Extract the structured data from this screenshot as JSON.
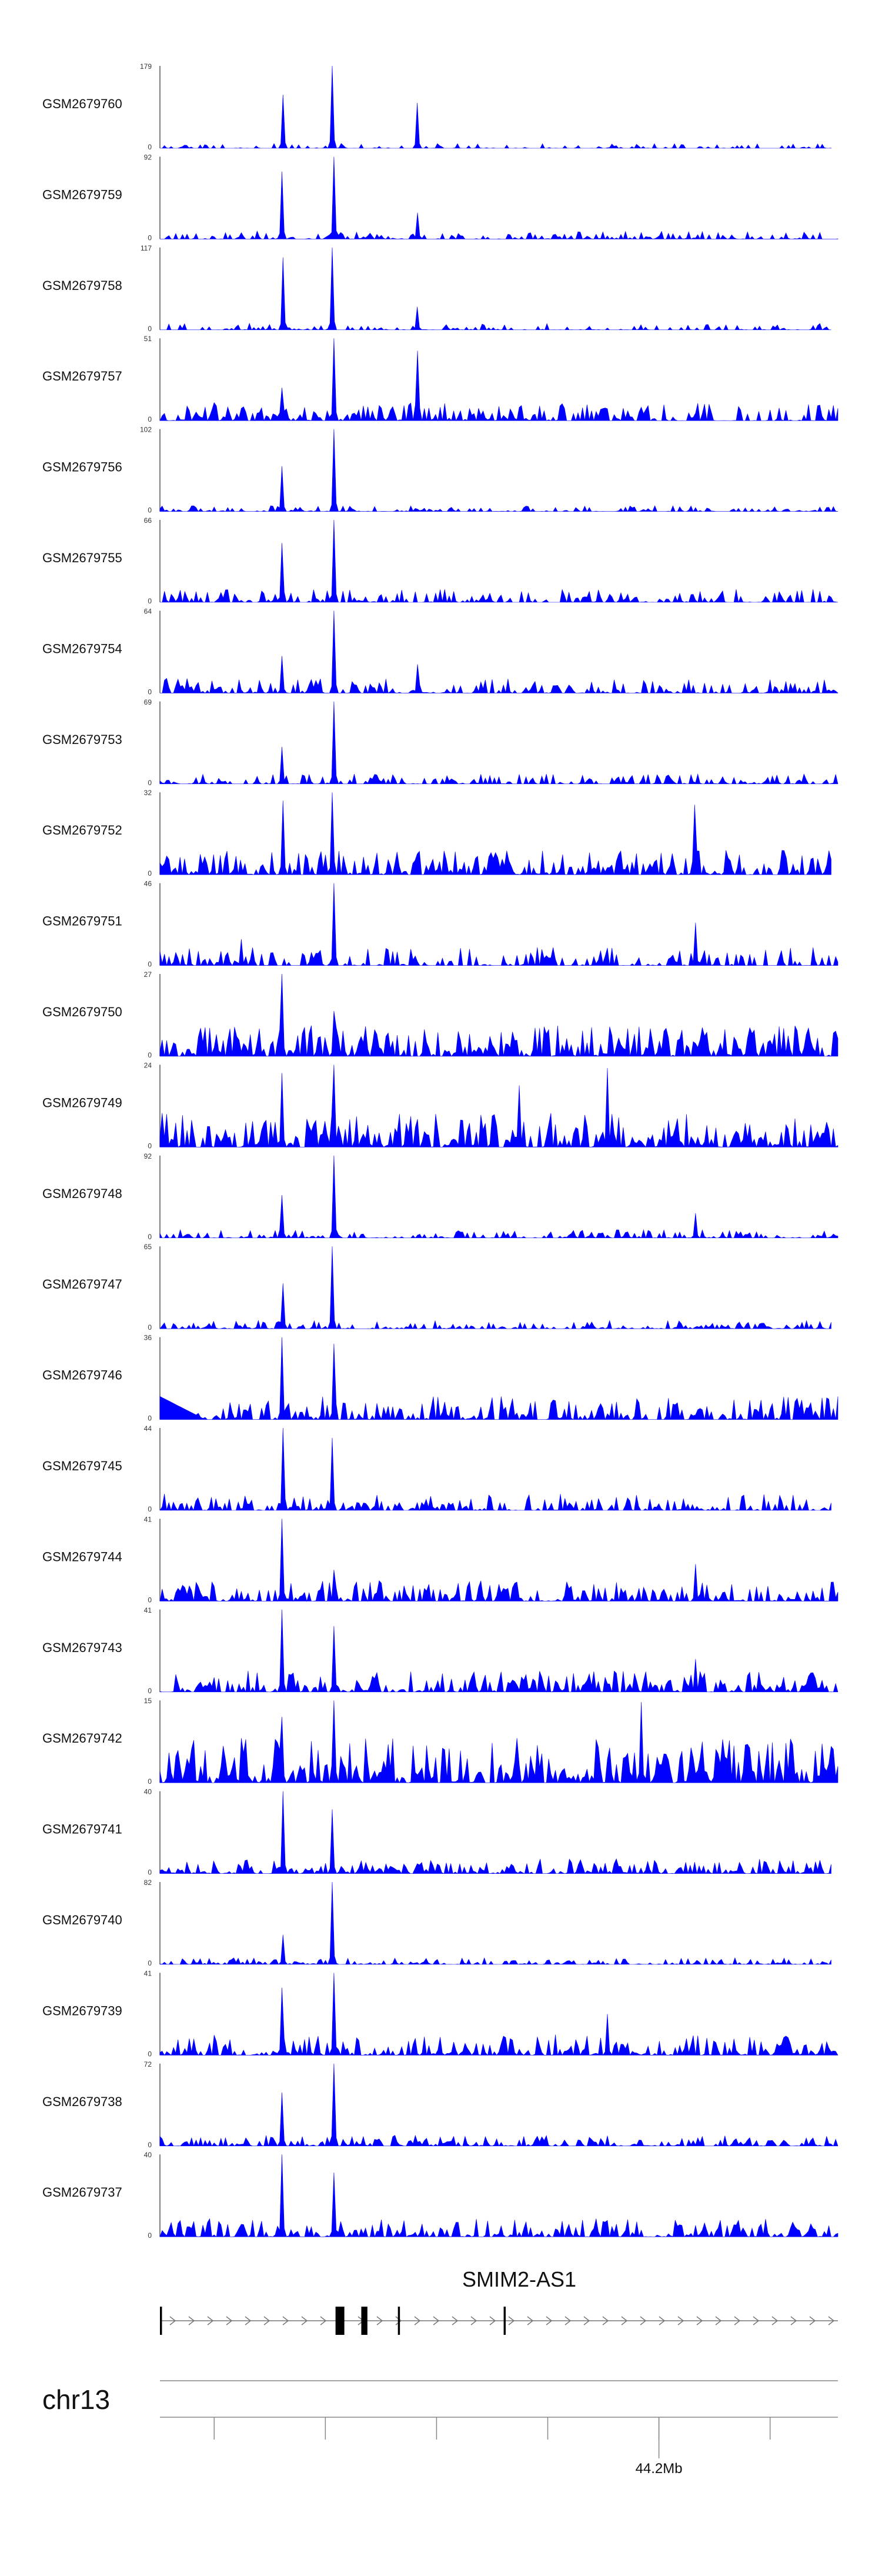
{
  "chart_data": {
    "type": "area",
    "title": "",
    "x_range": [
      44170000,
      44236000
    ],
    "tracks": [
      {
        "name": "GSM2679760",
        "ymax": "179",
        "ymin": "0",
        "seed": 11,
        "peaks": [
          [
            0.18,
            0.65
          ],
          [
            0.255,
            1.0
          ],
          [
            0.38,
            0.55
          ]
        ],
        "noise": 0.06,
        "density": 0.45,
        "gapLeft": 0.0,
        "gapRight": 0.01
      },
      {
        "name": "GSM2679759",
        "ymax": "92",
        "ymin": "0",
        "seed": 23,
        "peaks": [
          [
            0.18,
            0.82
          ],
          [
            0.255,
            1.0
          ],
          [
            0.38,
            0.32
          ]
        ],
        "noise": 0.1,
        "density": 0.6,
        "gapLeft": 0.0,
        "gapRight": 0.0
      },
      {
        "name": "GSM2679758",
        "ymax": "117",
        "ymin": "0",
        "seed": 37,
        "peaks": [
          [
            0.18,
            0.88
          ],
          [
            0.255,
            1.0
          ],
          [
            0.38,
            0.28
          ]
        ],
        "noise": 0.08,
        "density": 0.45,
        "gapLeft": 0.0,
        "gapRight": 0.01
      },
      {
        "name": "GSM2679757",
        "ymax": "51",
        "ymin": "0",
        "seed": 41,
        "peaks": [
          [
            0.18,
            0.4
          ],
          [
            0.255,
            1.0
          ],
          [
            0.38,
            0.85
          ]
        ],
        "noise": 0.22,
        "density": 0.8,
        "gapLeft": 0.0,
        "gapRight": 0.0
      },
      {
        "name": "GSM2679756",
        "ymax": "102",
        "ymin": "0",
        "seed": 53,
        "peaks": [
          [
            0.18,
            0.55
          ],
          [
            0.255,
            1.0
          ]
        ],
        "noise": 0.07,
        "density": 0.65,
        "gapLeft": 0.0,
        "gapRight": 0.0
      },
      {
        "name": "GSM2679755",
        "ymax": "66",
        "ymin": "0",
        "seed": 61,
        "peaks": [
          [
            0.18,
            0.72
          ],
          [
            0.255,
            1.0
          ]
        ],
        "noise": 0.16,
        "density": 0.75,
        "gapLeft": 0.0,
        "gapRight": 0.0
      },
      {
        "name": "GSM2679754",
        "ymax": "64",
        "ymin": "0",
        "seed": 71,
        "peaks": [
          [
            0.18,
            0.45
          ],
          [
            0.255,
            1.0
          ],
          [
            0.38,
            0.35
          ]
        ],
        "noise": 0.18,
        "density": 0.75,
        "gapLeft": 0.0,
        "gapRight": 0.0
      },
      {
        "name": "GSM2679753",
        "ymax": "69",
        "ymin": "0",
        "seed": 83,
        "peaks": [
          [
            0.18,
            0.45
          ],
          [
            0.255,
            1.0
          ]
        ],
        "noise": 0.12,
        "density": 0.7,
        "gapLeft": 0.0,
        "gapRight": 0.0
      },
      {
        "name": "GSM2679752",
        "ymax": "32",
        "ymin": "0",
        "seed": 97,
        "peaks": [
          [
            0.18,
            0.9
          ],
          [
            0.255,
            1.0
          ],
          [
            0.79,
            0.85
          ]
        ],
        "noise": 0.3,
        "density": 0.9,
        "gapLeft": 0.0,
        "gapRight": 0.01
      },
      {
        "name": "GSM2679751",
        "ymax": "46",
        "ymin": "0",
        "seed": 101,
        "peaks": [
          [
            0.255,
            1.0
          ],
          [
            0.79,
            0.52
          ],
          [
            0.12,
            0.32
          ]
        ],
        "noise": 0.22,
        "density": 0.6,
        "gapLeft": 0.0,
        "gapRight": 0.0
      },
      {
        "name": "GSM2679750",
        "ymax": "27",
        "ymin": "0",
        "seed": 113,
        "peaks": [
          [
            0.18,
            1.0
          ],
          [
            0.255,
            0.55
          ]
        ],
        "noise": 0.38,
        "density": 0.9,
        "gapLeft": 0.0,
        "gapRight": 0.0
      },
      {
        "name": "GSM2679749",
        "ymax": "24",
        "ymin": "0",
        "seed": 127,
        "peaks": [
          [
            0.18,
            0.9
          ],
          [
            0.255,
            1.0
          ],
          [
            0.66,
            0.96
          ],
          [
            0.53,
            0.75
          ]
        ],
        "noise": 0.42,
        "density": 0.92,
        "gapLeft": 0.0,
        "gapRight": 0.0
      },
      {
        "name": "GSM2679748",
        "ymax": "92",
        "ymin": "0",
        "seed": 131,
        "peaks": [
          [
            0.18,
            0.52
          ],
          [
            0.255,
            1.0
          ],
          [
            0.79,
            0.3
          ]
        ],
        "noise": 0.1,
        "density": 0.7,
        "gapLeft": 0.0,
        "gapRight": 0.0
      },
      {
        "name": "GSM2679747",
        "ymax": "65",
        "ymin": "0",
        "seed": 139,
        "peaks": [
          [
            0.18,
            0.55
          ],
          [
            0.255,
            1.0
          ]
        ],
        "noise": 0.1,
        "density": 0.65,
        "gapLeft": 0.0,
        "gapRight": 0.01
      },
      {
        "name": "GSM2679746",
        "ymax": "36",
        "ymin": "0",
        "seed": 149,
        "peaks": [
          [
            0.18,
            1.0
          ],
          [
            0.255,
            0.92
          ]
        ],
        "noise": 0.28,
        "density": 0.85,
        "gapLeft": 0.0,
        "gapRight": 0.0,
        "leftWedge": true
      },
      {
        "name": "GSM2679745",
        "ymax": "44",
        "ymin": "0",
        "seed": 157,
        "peaks": [
          [
            0.18,
            1.0
          ],
          [
            0.255,
            0.88
          ]
        ],
        "noise": 0.2,
        "density": 0.75,
        "gapLeft": 0.0,
        "gapRight": 0.01
      },
      {
        "name": "GSM2679744",
        "ymax": "41",
        "ymin": "0",
        "seed": 163,
        "peaks": [
          [
            0.18,
            1.0
          ],
          [
            0.255,
            0.38
          ],
          [
            0.79,
            0.45
          ]
        ],
        "noise": 0.25,
        "density": 0.85,
        "gapLeft": 0.0,
        "gapRight": 0.0
      },
      {
        "name": "GSM2679743",
        "ymax": "41",
        "ymin": "0",
        "seed": 173,
        "peaks": [
          [
            0.18,
            1.0
          ],
          [
            0.255,
            0.8
          ],
          [
            0.79,
            0.4
          ]
        ],
        "noise": 0.26,
        "density": 0.85,
        "gapLeft": 0.0,
        "gapRight": 0.0
      },
      {
        "name": "GSM2679742",
        "ymax": "15",
        "ymin": "0",
        "seed": 181,
        "peaks": [
          [
            0.18,
            0.8
          ],
          [
            0.255,
            1.0
          ],
          [
            0.71,
            0.98
          ]
        ],
        "noise": 0.55,
        "density": 0.95,
        "gapLeft": 0.0,
        "gapRight": 0.0
      },
      {
        "name": "GSM2679741",
        "ymax": "40",
        "ymin": "0",
        "seed": 191,
        "peaks": [
          [
            0.18,
            1.0
          ],
          [
            0.255,
            0.78
          ]
        ],
        "noise": 0.18,
        "density": 0.85,
        "gapLeft": 0.0,
        "gapRight": 0.01
      },
      {
        "name": "GSM2679740",
        "ymax": "82",
        "ymin": "0",
        "seed": 197,
        "peaks": [
          [
            0.18,
            0.36
          ],
          [
            0.255,
            1.0
          ]
        ],
        "noise": 0.08,
        "density": 0.75,
        "gapLeft": 0.0,
        "gapRight": 0.01
      },
      {
        "name": "GSM2679739",
        "ymax": "41",
        "ymin": "0",
        "seed": 211,
        "peaks": [
          [
            0.18,
            0.82
          ],
          [
            0.255,
            1.0
          ],
          [
            0.66,
            0.5
          ]
        ],
        "noise": 0.25,
        "density": 0.88,
        "gapLeft": 0.0,
        "gapRight": 0.0
      },
      {
        "name": "GSM2679738",
        "ymax": "72",
        "ymin": "0",
        "seed": 223,
        "peaks": [
          [
            0.18,
            0.65
          ],
          [
            0.255,
            1.0
          ]
        ],
        "noise": 0.13,
        "density": 0.8,
        "gapLeft": 0.0,
        "gapRight": 0.0
      },
      {
        "name": "GSM2679737",
        "ymax": "40",
        "ymin": "0",
        "seed": 227,
        "peaks": [
          [
            0.18,
            1.0
          ],
          [
            0.255,
            0.78
          ]
        ],
        "noise": 0.22,
        "density": 0.9,
        "gapLeft": 0.0,
        "gapRight": 0.0
      }
    ],
    "gene": {
      "name": "SMIM2-AS1",
      "strand": "+",
      "start_frac": 0.0,
      "end_frac": 1.0,
      "exons": [
        [
          0.0,
          0.003
        ],
        [
          0.259,
          0.272
        ],
        [
          0.297,
          0.306
        ],
        [
          0.351,
          0.354
        ],
        [
          0.507,
          0.51
        ]
      ]
    },
    "axis": {
      "chromosome": "chr13",
      "tick_fracs": [
        0.08,
        0.244,
        0.408,
        0.572,
        0.736,
        0.9
      ],
      "labeled_tick": {
        "frac": 0.736,
        "label": "44.2Mb"
      }
    },
    "fill_color": "#0000FF"
  }
}
